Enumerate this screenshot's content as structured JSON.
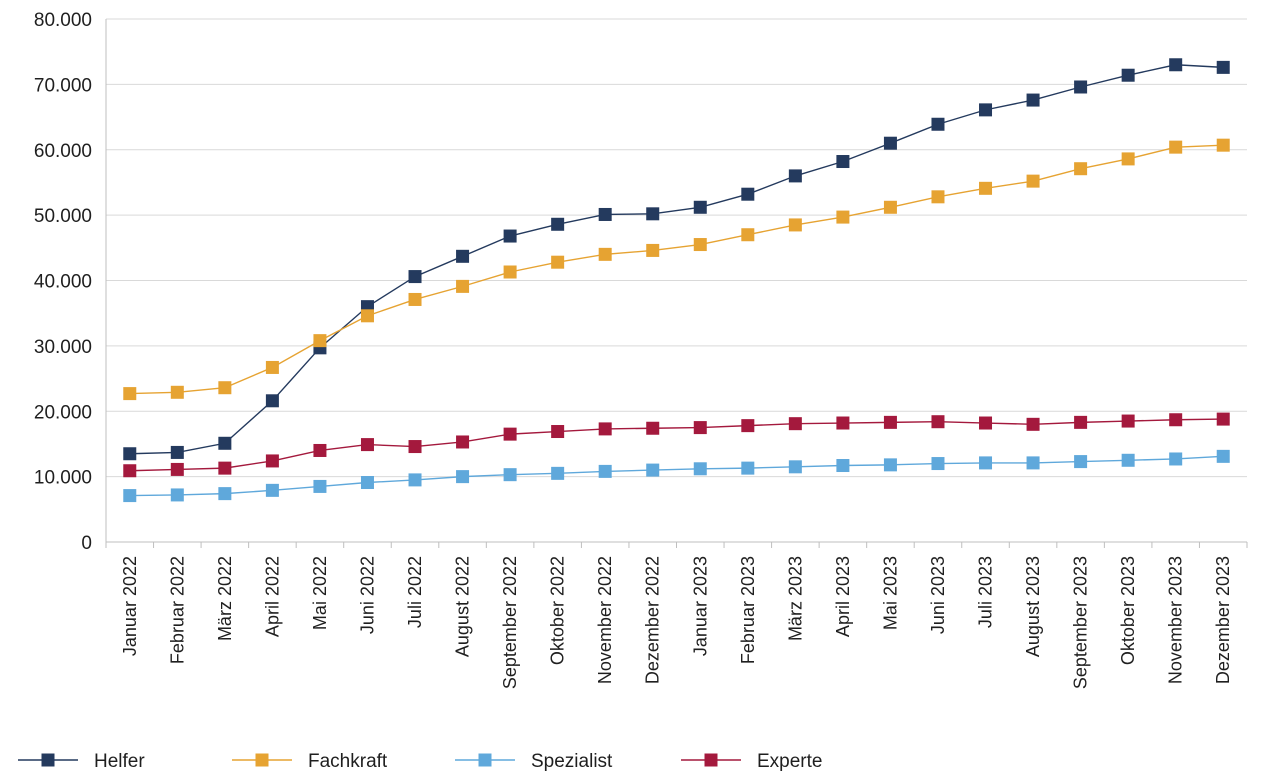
{
  "chart_data": {
    "type": "line",
    "title": "",
    "xlabel": "",
    "ylabel": "",
    "ylim": [
      0,
      80000
    ],
    "yticks": [
      0,
      10000,
      20000,
      30000,
      40000,
      50000,
      60000,
      70000,
      80000
    ],
    "ytick_labels": [
      "0",
      "10.000",
      "20.000",
      "30.000",
      "40.000",
      "50.000",
      "60.000",
      "70.000",
      "80.000"
    ],
    "grid": true,
    "legend_position": "bottom",
    "categories": [
      "Januar 2022",
      "Februar 2022",
      "März 2022",
      "April 2022",
      "Mai 2022",
      "Juni 2022",
      "Juli 2022",
      "August 2022",
      "September 2022",
      "Oktober 2022",
      "November 2022",
      "Dezember 2022",
      "Januar 2023",
      "Februar 2023",
      "März 2023",
      "April 2023",
      "Mai 2023",
      "Juni 2023",
      "Juli 2023",
      "August 2023",
      "September 2023",
      "Oktober 2023",
      "November 2023",
      "Dezember 2023"
    ],
    "series": [
      {
        "name": "Helfer",
        "color": "#243a5e",
        "marker": "square",
        "values": [
          13500,
          13700,
          15100,
          21600,
          29700,
          36000,
          40600,
          43700,
          46800,
          48600,
          50100,
          50200,
          51200,
          53200,
          56000,
          58200,
          61000,
          63900,
          66100,
          67600,
          69600,
          71400,
          73000,
          72600
        ]
      },
      {
        "name": "Fachkraft",
        "color": "#e6a332",
        "marker": "square",
        "values": [
          22700,
          22900,
          23600,
          26700,
          30800,
          34600,
          37100,
          39100,
          41300,
          42800,
          44000,
          44600,
          45500,
          47000,
          48500,
          49700,
          51200,
          52800,
          54100,
          55200,
          57100,
          58600,
          60400,
          60700
        ]
      },
      {
        "name": "Spezialist",
        "color": "#5fa8db",
        "marker": "square",
        "values": [
          7100,
          7200,
          7400,
          7900,
          8500,
          9100,
          9500,
          10000,
          10300,
          10500,
          10800,
          11000,
          11200,
          11300,
          11500,
          11700,
          11800,
          12000,
          12100,
          12100,
          12300,
          12500,
          12700,
          13100
        ]
      },
      {
        "name": "Experte",
        "color": "#a4193d",
        "marker": "square",
        "values": [
          10900,
          11100,
          11300,
          12400,
          14000,
          14900,
          14600,
          15300,
          16500,
          16900,
          17300,
          17400,
          17500,
          17800,
          18100,
          18200,
          18300,
          18400,
          18200,
          18000,
          18300,
          18500,
          18700,
          18800
        ]
      }
    ]
  }
}
